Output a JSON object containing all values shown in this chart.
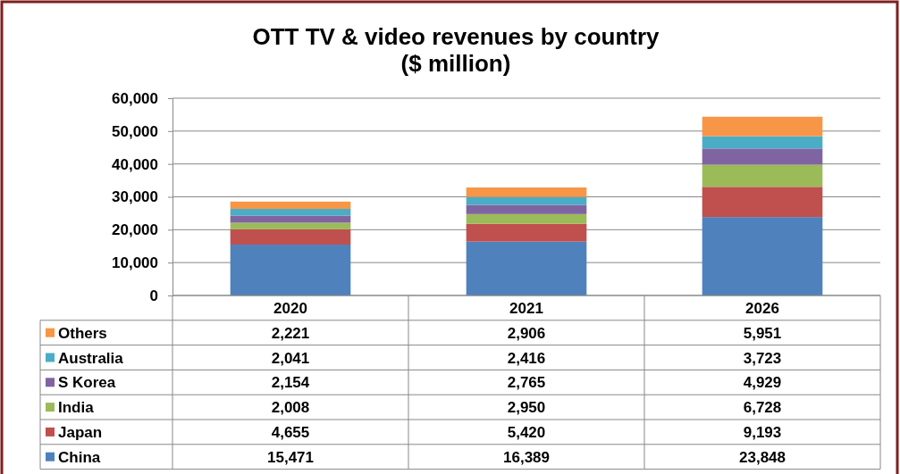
{
  "chart_data": {
    "type": "bar",
    "title": "OTT TV & video revenues by country",
    "subtitle": "($ million)",
    "categories": [
      "2020",
      "2021",
      "2026"
    ],
    "stacked": true,
    "ylim": [
      0,
      60000
    ],
    "yticks": [
      {
        "value": 0,
        "label": "0"
      },
      {
        "value": 10000,
        "label": "10,000"
      },
      {
        "value": 20000,
        "label": "20,000"
      },
      {
        "value": 30000,
        "label": "30,000"
      },
      {
        "value": 40000,
        "label": "40,000"
      },
      {
        "value": 50000,
        "label": "50,000"
      },
      {
        "value": 60000,
        "label": "60,000"
      }
    ],
    "grid": "y",
    "legend": "bottom left",
    "series": [
      {
        "name": "China",
        "color": "#4f81bd",
        "values": [
          15471,
          16389,
          23848
        ],
        "value_labels": [
          "15,471",
          "16,389",
          "23,848"
        ]
      },
      {
        "name": "Japan",
        "color": "#c0504d",
        "values": [
          4655,
          5420,
          9193
        ],
        "value_labels": [
          "4,655",
          "5,420",
          "9,193"
        ]
      },
      {
        "name": "India",
        "color": "#9bbb59",
        "values": [
          2008,
          2950,
          6728
        ],
        "value_labels": [
          "2,008",
          "2,950",
          "6,728"
        ]
      },
      {
        "name": "S Korea",
        "color": "#8064a2",
        "values": [
          2154,
          2765,
          4929
        ],
        "value_labels": [
          "2,154",
          "2,765",
          "4,929"
        ]
      },
      {
        "name": "Australia",
        "color": "#4bacc6",
        "values": [
          2041,
          2416,
          3723
        ],
        "value_labels": [
          "2,041",
          "2,416",
          "3,723"
        ]
      },
      {
        "name": "Others",
        "color": "#f79646",
        "values": [
          2221,
          2906,
          5951
        ],
        "value_labels": [
          "2,221",
          "2,906",
          "5,951"
        ]
      }
    ]
  }
}
